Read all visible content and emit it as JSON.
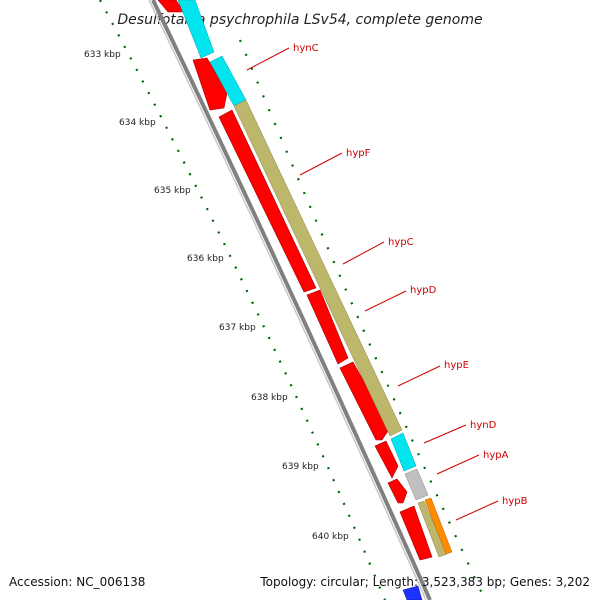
{
  "title": "Desulfotalea psychrophila LSv54, complete genome",
  "footer": {
    "accession": "Accession: NC_006138",
    "summary": "Topology: circular; Length: 3,523,383 bp; Genes: 3,202"
  },
  "ticks": [
    {
      "label": "633 kbp"
    },
    {
      "label": "634 kbp"
    },
    {
      "label": "635 kbp"
    },
    {
      "label": "636 kbp"
    },
    {
      "label": "637 kbp"
    },
    {
      "label": "638 kbp"
    },
    {
      "label": "639 kbp"
    },
    {
      "label": "640 kbp"
    }
  ],
  "genes": [
    {
      "label": "hynC",
      "color": "#00e5ee"
    },
    {
      "label": "hypF",
      "color": "#bdb76b"
    },
    {
      "label": "hypC",
      "color": "#bdb76b"
    },
    {
      "label": "hypD",
      "color": "#bdb76b"
    },
    {
      "label": "hypE",
      "color": "#bdb76b"
    },
    {
      "label": "hynD",
      "color": "#00e5ee"
    },
    {
      "label": "hypA",
      "color": "#c0c0c0"
    },
    {
      "label": "hypB",
      "color": "#ff8c00"
    }
  ],
  "colors": {
    "cds": "#ff0000",
    "backbone": "#808080",
    "ticks": "#006400",
    "label_line": "#cc0000"
  }
}
